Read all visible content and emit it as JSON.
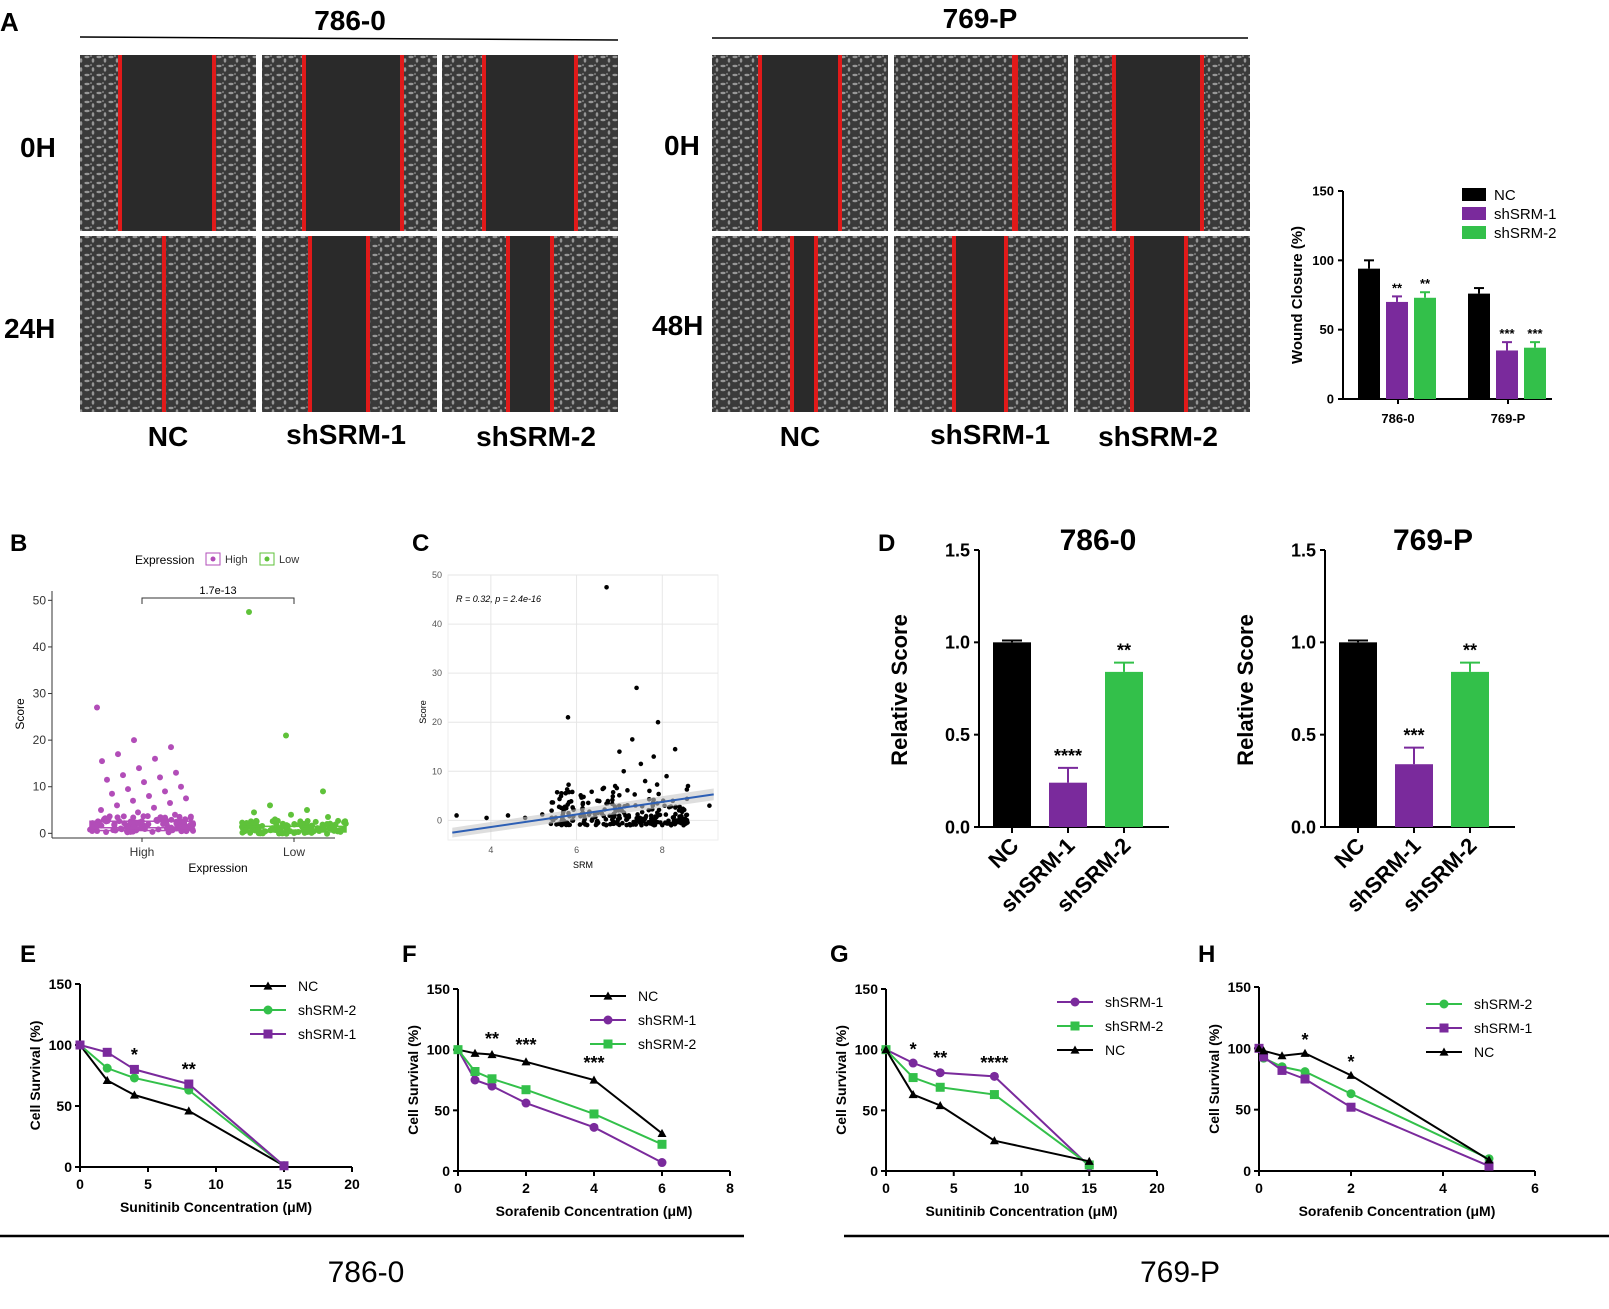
{
  "colors": {
    "nc": "#000000",
    "sh1": "#7a2a9c",
    "sh2": "#33c04a",
    "red_line": "#e01a1a",
    "micro_bg": "#2a2a2a",
    "high": "#b24db8",
    "low": "#5fc23a"
  },
  "panel_a": {
    "letter": "A",
    "left_title": "786-0",
    "right_title": "769-P",
    "left_rows": [
      "0H",
      "24H"
    ],
    "right_rows": [
      "0H",
      "48H"
    ],
    "conditions": [
      "NC",
      "shSRM-1",
      "shSRM-2"
    ]
  },
  "chart_data": [
    {
      "id": "A-bar",
      "type": "bar",
      "ylabel": "Wound Closure (%)",
      "ylim": [
        0,
        150
      ],
      "yticks": [
        "0",
        "50",
        "100",
        "150"
      ],
      "categories": [
        "786-0",
        "769-P"
      ],
      "series": [
        {
          "name": "NC",
          "values": [
            94,
            76
          ],
          "err": [
            6,
            4
          ],
          "sig": [
            "",
            ""
          ]
        },
        {
          "name": "shSRM-1",
          "values": [
            70,
            35
          ],
          "err": [
            4,
            6
          ],
          "sig": [
            "**",
            "***"
          ]
        },
        {
          "name": "shSRM-2",
          "values": [
            73,
            37
          ],
          "err": [
            4,
            4
          ],
          "sig": [
            "**",
            "***"
          ]
        }
      ],
      "legend": [
        "NC",
        "shSRM-1",
        "shSRM-2"
      ]
    },
    {
      "id": "B",
      "letter": "B",
      "type": "scatter",
      "xlabel": "Expression",
      "ylabel": "Score",
      "categories": [
        "High",
        "Low"
      ],
      "yticks": [
        "0",
        "10",
        "20",
        "30",
        "40",
        "50"
      ],
      "ylim": [
        -1,
        52
      ],
      "legend_title": "Expression",
      "legend": [
        "High",
        "Low"
      ],
      "pvalue": "1.7e-13",
      "box": [
        {
          "q1": 0.6,
          "median": 1.2,
          "q3": 2.6
        },
        {
          "q1": 0.3,
          "median": 0.7,
          "q3": 1.5
        }
      ],
      "outliers": [
        [
          27,
          20,
          18.5,
          17,
          16,
          15.5,
          14,
          13,
          12.5,
          12,
          11.5,
          11,
          10,
          9.5,
          9,
          8.5,
          8,
          7.5,
          7,
          6.5,
          6,
          5.5,
          5,
          4.5,
          4
        ],
        [
          47.5,
          21,
          9,
          6,
          5,
          4.5,
          4,
          3.5,
          3
        ]
      ]
    },
    {
      "id": "C",
      "letter": "C",
      "type": "scatter",
      "xlabel": "SRM",
      "ylabel": "Score",
      "xlim": [
        3,
        9.3
      ],
      "ylim": [
        -4,
        50
      ],
      "xticks": [
        "4",
        "6",
        "8"
      ],
      "yticks": [
        "0",
        "10",
        "20",
        "30",
        "40",
        "50"
      ],
      "annotation": "R = 0.32, p = 2.4e-16",
      "regression": {
        "x": [
          3.1,
          9.2
        ],
        "y": [
          -2.5,
          5.3
        ]
      },
      "points": [
        [
          6.7,
          47.5
        ],
        [
          7.4,
          27
        ],
        [
          5.8,
          21
        ],
        [
          7.9,
          20
        ],
        [
          7.3,
          16.5
        ],
        [
          8.3,
          14.5
        ],
        [
          7.0,
          14
        ],
        [
          7.8,
          13
        ],
        [
          7.5,
          11.5
        ],
        [
          7.1,
          10
        ],
        [
          8.1,
          9
        ],
        [
          7.6,
          8
        ],
        [
          8.6,
          7
        ],
        [
          6.9,
          7
        ],
        [
          7.7,
          6
        ],
        [
          9.1,
          3
        ],
        [
          3.2,
          1
        ],
        [
          3.9,
          0.5
        ],
        [
          4.4,
          1
        ],
        [
          4.8,
          0.5
        ],
        [
          5.2,
          1.2
        ]
      ]
    },
    {
      "id": "D1",
      "letter": "D",
      "type": "bar",
      "title": "786-0",
      "ylabel": "Relative Score",
      "ylim": [
        0,
        1.5
      ],
      "yticks": [
        "0.0",
        "0.5",
        "1.0",
        "1.5"
      ],
      "categories": [
        "NC",
        "shSRM-1",
        "shSRM-2"
      ],
      "values": [
        1.0,
        0.24,
        0.84
      ],
      "err": [
        0.01,
        0.08,
        0.05
      ],
      "sig": [
        "",
        "****",
        "**"
      ]
    },
    {
      "id": "D2",
      "type": "bar",
      "title": "769-P",
      "ylabel": "Relative Score",
      "ylim": [
        0,
        1.5
      ],
      "yticks": [
        "0.0",
        "0.5",
        "1.0",
        "1.5"
      ],
      "categories": [
        "NC",
        "shSRM-1",
        "shSRM-2"
      ],
      "values": [
        1.0,
        0.34,
        0.84
      ],
      "err": [
        0.01,
        0.09,
        0.05
      ],
      "sig": [
        "",
        "***",
        "**"
      ]
    },
    {
      "id": "E",
      "letter": "E",
      "type": "line",
      "xlabel": "Sunitinib Concentration (μM)",
      "ylabel": "Cell Survival (%)",
      "xlim": [
        0,
        20
      ],
      "ylim": [
        0,
        150
      ],
      "xticks": [
        "0",
        "5",
        "10",
        "15",
        "20"
      ],
      "yticks": [
        "0",
        "50",
        "100",
        "150"
      ],
      "legend": [
        "NC",
        "shSRM-2",
        "shSRM-1"
      ],
      "series": [
        {
          "name": "NC",
          "x": [
            0,
            2,
            4,
            8,
            15
          ],
          "y": [
            100,
            71,
            59,
            46,
            1
          ]
        },
        {
          "name": "shSRM-2",
          "x": [
            0,
            2,
            4,
            8,
            15
          ],
          "y": [
            100,
            81,
            73,
            63,
            1
          ]
        },
        {
          "name": "shSRM-1",
          "x": [
            0,
            2,
            4,
            8,
            15
          ],
          "y": [
            100,
            94,
            80,
            68,
            1
          ]
        }
      ],
      "sig": [
        {
          "x": 4,
          "y": 87,
          "label": "*"
        },
        {
          "x": 8,
          "y": 75,
          "label": "**"
        }
      ]
    },
    {
      "id": "F",
      "letter": "F",
      "type": "line",
      "xlabel": "Sorafenib Concentration (μM)",
      "ylabel": "Cell Survival (%)",
      "xlim": [
        0,
        8
      ],
      "ylim": [
        0,
        150
      ],
      "xticks": [
        "0",
        "2",
        "4",
        "6",
        "8"
      ],
      "yticks": [
        "0",
        "50",
        "100",
        "150"
      ],
      "legend": [
        "NC",
        "shSRM-1",
        "shSRM-2"
      ],
      "series": [
        {
          "name": "NC",
          "x": [
            0,
            0.5,
            1,
            2,
            4,
            6
          ],
          "y": [
            100,
            97,
            96,
            90,
            75,
            31
          ]
        },
        {
          "name": "shSRM-1",
          "x": [
            0,
            0.5,
            1,
            2,
            4,
            6
          ],
          "y": [
            100,
            75,
            70,
            56,
            36,
            7
          ]
        },
        {
          "name": "shSRM-2",
          "x": [
            0,
            0.5,
            1,
            2,
            4,
            6
          ],
          "y": [
            100,
            82,
            76,
            67,
            47,
            22
          ]
        }
      ],
      "sig": [
        {
          "x": 1,
          "y": 104,
          "label": "**"
        },
        {
          "x": 2,
          "y": 99,
          "label": "***"
        },
        {
          "x": 4,
          "y": 84,
          "label": "***"
        }
      ]
    },
    {
      "id": "G",
      "letter": "G",
      "type": "line",
      "xlabel": "Sunitinib Concentration (μM)",
      "ylabel": "Cell Survival (%)",
      "xlim": [
        0,
        20
      ],
      "ylim": [
        0,
        150
      ],
      "xticks": [
        "0",
        "5",
        "10",
        "15",
        "20"
      ],
      "yticks": [
        "0",
        "50",
        "100",
        "150"
      ],
      "legend": [
        "shSRM-1",
        "shSRM-2",
        "NC"
      ],
      "series": [
        {
          "name": "shSRM-1",
          "x": [
            0,
            2,
            4,
            8,
            15
          ],
          "y": [
            100,
            89,
            81,
            78,
            4
          ]
        },
        {
          "name": "shSRM-2",
          "x": [
            0,
            2,
            4,
            8,
            15
          ],
          "y": [
            100,
            77,
            69,
            63,
            5
          ]
        },
        {
          "name": "NC",
          "x": [
            0,
            2,
            4,
            8,
            15
          ],
          "y": [
            100,
            63,
            54,
            25,
            8
          ]
        }
      ],
      "sig": [
        {
          "x": 2,
          "y": 95,
          "label": "*"
        },
        {
          "x": 4,
          "y": 88,
          "label": "**"
        },
        {
          "x": 8,
          "y": 84,
          "label": "****"
        }
      ]
    },
    {
      "id": "H",
      "letter": "H",
      "type": "line",
      "xlabel": "Sorafenib Concentration (μM)",
      "ylabel": "Cell Survival (%)",
      "xlim": [
        0,
        6
      ],
      "ylim": [
        0,
        150
      ],
      "xticks": [
        "0",
        "2",
        "4",
        "6"
      ],
      "yticks": [
        "0",
        "50",
        "100",
        "150"
      ],
      "legend": [
        "shSRM-2",
        "shSRM-1",
        "NC"
      ],
      "series": [
        {
          "name": "shSRM-2",
          "x": [
            0,
            0.1,
            0.5,
            1,
            2,
            5
          ],
          "y": [
            100,
            92,
            85,
            81,
            63,
            10
          ]
        },
        {
          "name": "shSRM-1",
          "x": [
            0,
            0.1,
            0.5,
            1,
            2,
            5
          ],
          "y": [
            100,
            93,
            82,
            75,
            52,
            4
          ]
        },
        {
          "name": "NC",
          "x": [
            0,
            0.1,
            0.5,
            1,
            2,
            5
          ],
          "y": [
            100,
            98,
            94,
            96,
            78,
            9
          ]
        }
      ],
      "sig": [
        {
          "x": 1,
          "y": 102,
          "label": "*"
        },
        {
          "x": 2,
          "y": 84,
          "label": "*"
        }
      ]
    }
  ],
  "bottom": {
    "left": "786-0",
    "right": "769-P"
  }
}
